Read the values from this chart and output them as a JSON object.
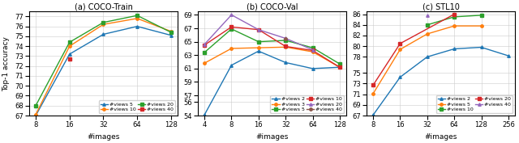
{
  "plots": [
    {
      "title": "(a) COCO-Train",
      "xlabel": "#images",
      "ylabel": "Top-1 accuracy",
      "xvalues": [
        8,
        16,
        32,
        64,
        128
      ],
      "ylim": [
        67,
        77.5
      ],
      "yticks": [
        67,
        68,
        69,
        70,
        71,
        72,
        73,
        74,
        75,
        76,
        77
      ],
      "series": [
        {
          "label": "#views 5",
          "color": "#1f77b4",
          "marker": "^",
          "linestyle": "-",
          "y": [
            67.0,
            73.2,
            75.2,
            76.0,
            75.1
          ]
        },
        {
          "label": "#views 10",
          "color": "#ff7f0e",
          "marker": "o",
          "linestyle": "-",
          "y": [
            67.1,
            74.0,
            76.2,
            76.8,
            75.5
          ]
        },
        {
          "label": "#views 20",
          "color": "#2ca02c",
          "marker": "s",
          "linestyle": "-",
          "y": [
            68.0,
            74.4,
            76.4,
            77.1,
            75.4
          ]
        },
        {
          "label": "#views 40",
          "color": "#d62728",
          "marker": "s",
          "linestyle": "-",
          "y": [
            null,
            72.7,
            null,
            null,
            null
          ]
        }
      ],
      "legend_loc": "lower right",
      "legend_ncol": 2
    },
    {
      "title": "(b) COCO-Val",
      "xlabel": "#images",
      "ylabel": "",
      "xvalues": [
        4,
        8,
        16,
        32,
        64,
        128
      ],
      "ylim": [
        54,
        69.5
      ],
      "yticks": [
        54,
        56,
        57,
        59,
        61,
        63,
        65,
        67,
        69
      ],
      "series": [
        {
          "label": "#views 2",
          "color": "#1f77b4",
          "marker": "^",
          "linestyle": "-",
          "y": [
            54.1,
            61.5,
            63.6,
            61.9,
            61.0,
            61.2
          ]
        },
        {
          "label": "#views 3",
          "color": "#ff7f0e",
          "marker": "o",
          "linestyle": "-",
          "y": [
            61.8,
            64.0,
            64.1,
            64.2,
            63.5,
            61.2
          ]
        },
        {
          "label": "#views 5",
          "color": "#2ca02c",
          "marker": "s",
          "linestyle": "-",
          "y": [
            63.4,
            66.9,
            65.0,
            65.2,
            64.1,
            61.7
          ]
        },
        {
          "label": "#views 10",
          "color": "#d62728",
          "marker": "s",
          "linestyle": "-",
          "y": [
            64.5,
            67.2,
            66.8,
            64.3,
            63.7,
            61.2
          ]
        },
        {
          "label": "#views 20",
          "color": "#9467bd",
          "marker": "^",
          "linestyle": "-",
          "y": [
            64.6,
            69.0,
            66.8,
            65.5,
            63.8,
            null
          ]
        },
        {
          "label": "#views 40",
          "color": "#8c564b",
          "marker": "o",
          "linestyle": "-",
          "y": [
            null,
            null,
            null,
            65.4,
            null,
            null
          ]
        }
      ],
      "legend_loc": "lower right",
      "legend_ncol": 2
    },
    {
      "title": "(c) STL10",
      "xlabel": "#images",
      "ylabel": "",
      "xvalues": [
        8,
        16,
        32,
        64,
        128,
        256
      ],
      "ylim": [
        67,
        86.5
      ],
      "yticks": [
        67,
        69,
        71,
        73,
        75,
        78,
        80,
        82,
        84,
        86
      ],
      "series": [
        {
          "label": "#views 2",
          "color": "#1f77b4",
          "marker": "^",
          "linestyle": "-",
          "y": [
            67.1,
            74.2,
            78.0,
            79.5,
            79.8,
            78.2
          ]
        },
        {
          "label": "#views 5",
          "color": "#ff7f0e",
          "marker": "o",
          "linestyle": "-",
          "y": [
            71.1,
            79.4,
            82.3,
            83.8,
            83.8,
            null
          ]
        },
        {
          "label": "#views 10",
          "color": "#2ca02c",
          "marker": "s",
          "linestyle": "-",
          "y": [
            null,
            null,
            84.0,
            85.5,
            85.8,
            null
          ]
        },
        {
          "label": "#views 20",
          "color": "#d62728",
          "marker": "s",
          "linestyle": "-",
          "y": [
            72.7,
            80.5,
            null,
            86.0,
            null,
            null
          ]
        },
        {
          "label": "#views 40",
          "color": "#9467bd",
          "marker": "^",
          "linestyle": "-",
          "y": [
            null,
            null,
            85.8,
            null,
            null,
            null
          ]
        }
      ],
      "legend_loc": "lower right",
      "legend_ncol": 2
    }
  ],
  "fig_width": 6.4,
  "fig_height": 1.77,
  "dpi": 100
}
